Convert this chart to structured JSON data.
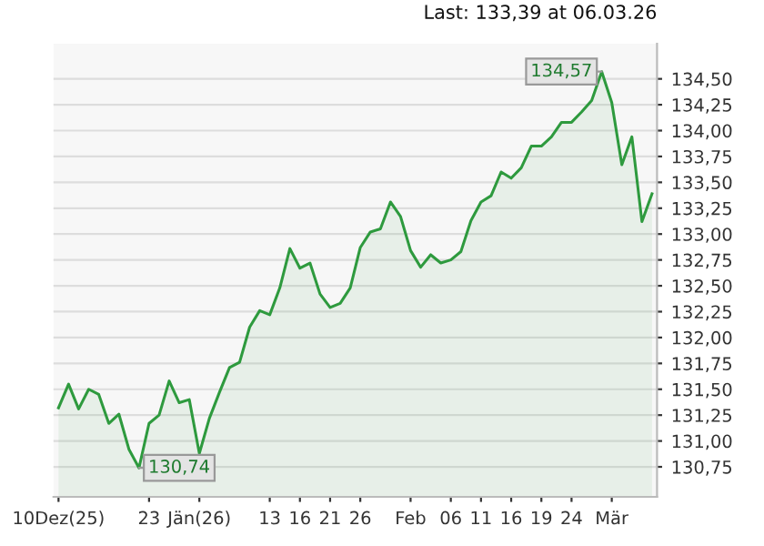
{
  "chart_data": {
    "type": "area",
    "annotations": [
      "Last: 133,39 at 06.03.26"
    ],
    "categories": [
      "10Dez(25)",
      null,
      null,
      null,
      null,
      null,
      null,
      null,
      null,
      "23",
      null,
      null,
      null,
      null,
      "Jän(26)",
      null,
      null,
      null,
      null,
      null,
      null,
      "13",
      null,
      null,
      "16",
      null,
      null,
      "21",
      null,
      null,
      "26",
      null,
      null,
      null,
      null,
      "Feb",
      null,
      null,
      null,
      "06",
      null,
      null,
      "11",
      null,
      null,
      "16",
      null,
      null,
      "19",
      null,
      null,
      "24",
      null,
      null,
      null,
      "Mär",
      null,
      null,
      null,
      null
    ],
    "series": [
      {
        "color": "#2e9a3e",
        "values": [
          131.32,
          131.55,
          131.31,
          131.5,
          131.45,
          131.17,
          131.26,
          130.92,
          130.74,
          131.17,
          131.25,
          131.58,
          131.37,
          131.4,
          130.88,
          131.22,
          131.47,
          131.71,
          131.76,
          132.1,
          132.26,
          132.22,
          132.48,
          132.86,
          132.67,
          132.72,
          132.42,
          132.29,
          132.33,
          132.48,
          132.87,
          133.02,
          133.05,
          133.31,
          133.17,
          132.84,
          132.68,
          132.8,
          132.72,
          132.75,
          132.83,
          133.13,
          133.31,
          133.37,
          133.6,
          133.54,
          133.64,
          133.85,
          133.85,
          133.94,
          134.08,
          134.08,
          134.18,
          134.29,
          134.57,
          134.27,
          133.67,
          133.94,
          133.12,
          133.39
        ],
        "value_labels": [
          null,
          null,
          null,
          null,
          null,
          null,
          null,
          null,
          "130,74",
          null,
          null,
          null,
          null,
          null,
          null,
          null,
          null,
          null,
          null,
          null,
          null,
          null,
          null,
          null,
          null,
          null,
          null,
          null,
          null,
          null,
          null,
          null,
          null,
          null,
          null,
          null,
          null,
          null,
          null,
          null,
          null,
          null,
          null,
          null,
          null,
          null,
          null,
          null,
          null,
          null,
          null,
          null,
          null,
          null,
          "134,57",
          null,
          null,
          null,
          null,
          null
        ]
      }
    ],
    "ylim": [
      130.46,
      134.84
    ],
    "yticks": [
      {
        "value": 130.75,
        "label": "130,75"
      },
      {
        "value": 131.0,
        "label": "131,00"
      },
      {
        "value": 131.25,
        "label": "131,25"
      },
      {
        "value": 131.5,
        "label": "131,50"
      },
      {
        "value": 131.75,
        "label": "131,75"
      },
      {
        "value": 132.0,
        "label": "132,00"
      },
      {
        "value": 132.25,
        "label": "132,25"
      },
      {
        "value": 132.5,
        "label": "132,50"
      },
      {
        "value": 132.75,
        "label": "132,75"
      },
      {
        "value": 133.0,
        "label": "133,00"
      },
      {
        "value": 133.25,
        "label": "133,25"
      },
      {
        "value": 133.5,
        "label": "133,50"
      },
      {
        "value": 133.75,
        "label": "133,75"
      },
      {
        "value": 134.0,
        "label": "134,00"
      },
      {
        "value": 134.25,
        "label": "134,25"
      },
      {
        "value": 134.5,
        "label": "134,50"
      }
    ],
    "grid": "y"
  }
}
